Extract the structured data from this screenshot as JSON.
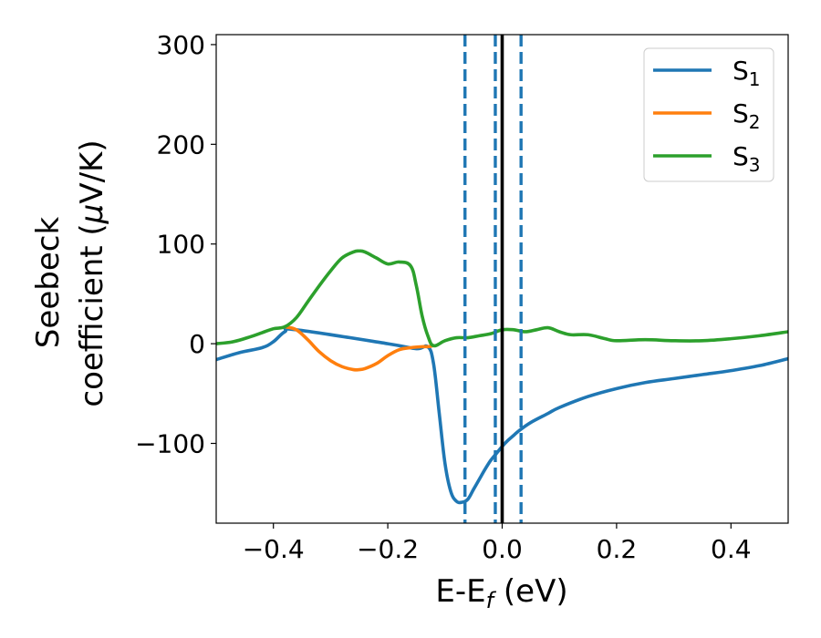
{
  "chart_data": {
    "type": "line",
    "xlabel_main": "E-E",
    "xlabel_sub": "f",
    "xlabel_unit": " (eV)",
    "ylabel_line1": "Seebeck",
    "ylabel_line2_pre": "coefficient  (",
    "ylabel_line2_mu": "μ",
    "ylabel_line2_post": "V/K)",
    "xlim": [
      -0.5,
      0.5
    ],
    "ylim": [
      -180,
      310
    ],
    "x_ticks": [
      {
        "value": -0.4,
        "label": "−0.4"
      },
      {
        "value": -0.2,
        "label": "−0.2"
      },
      {
        "value": 0.0,
        "label": "0.0"
      },
      {
        "value": 0.2,
        "label": "0.2"
      },
      {
        "value": 0.4,
        "label": "0.4"
      }
    ],
    "y_ticks": [
      {
        "value": -100,
        "label": "−100"
      },
      {
        "value": 0,
        "label": "0"
      },
      {
        "value": 100,
        "label": "100"
      },
      {
        "value": 200,
        "label": "200"
      },
      {
        "value": 300,
        "label": "300"
      }
    ],
    "legend_position": "top-right",
    "series": [
      {
        "name": "S",
        "subscript": "1",
        "color": "#1f77b4",
        "x": [
          -0.5,
          -0.46,
          -0.42,
          -0.4,
          -0.38,
          -0.36,
          -0.2,
          -0.15,
          -0.13,
          -0.12,
          -0.11,
          -0.1,
          -0.09,
          -0.08,
          -0.07,
          -0.06,
          -0.05,
          -0.04,
          -0.03,
          -0.02,
          -0.01,
          0.0,
          0.01,
          0.02,
          0.03,
          0.05,
          0.08,
          0.1,
          0.15,
          0.2,
          0.25,
          0.3,
          0.35,
          0.4,
          0.45,
          0.5
        ],
        "y": [
          -16,
          -9,
          -4,
          2,
          12,
          14,
          0,
          -5,
          -3,
          -20,
          -70,
          -120,
          -148,
          -158,
          -159,
          -156,
          -146,
          -136,
          -126,
          -117,
          -110,
          -103,
          -97,
          -92,
          -87,
          -79,
          -70,
          -64,
          -53,
          -45,
          -39,
          -35,
          -31,
          -27,
          -22,
          -15
        ]
      },
      {
        "name": "S",
        "subscript": "2",
        "color": "#ff7f0e",
        "x": [
          -0.38,
          -0.36,
          -0.34,
          -0.32,
          -0.3,
          -0.28,
          -0.26,
          -0.25,
          -0.24,
          -0.22,
          -0.2,
          -0.18,
          -0.16,
          -0.14,
          -0.13,
          -0.12
        ],
        "y": [
          17,
          14,
          4,
          -8,
          -17,
          -23,
          -26,
          -26,
          -25,
          -20,
          -12,
          -6,
          -4,
          -3,
          -3,
          -2
        ]
      },
      {
        "name": "S",
        "subscript": "3",
        "color": "#2ca02c",
        "x": [
          -0.5,
          -0.47,
          -0.44,
          -0.42,
          -0.4,
          -0.38,
          -0.36,
          -0.34,
          -0.32,
          -0.3,
          -0.28,
          -0.26,
          -0.25,
          -0.24,
          -0.22,
          -0.2,
          -0.18,
          -0.16,
          -0.15,
          -0.14,
          -0.13,
          -0.12,
          -0.1,
          -0.08,
          -0.06,
          -0.04,
          -0.02,
          0.0,
          0.02,
          0.04,
          0.06,
          0.08,
          0.1,
          0.12,
          0.15,
          0.18,
          0.2,
          0.25,
          0.3,
          0.35,
          0.4,
          0.45,
          0.5
        ],
        "y": [
          0,
          2,
          7,
          11,
          15,
          17,
          26,
          42,
          58,
          73,
          86,
          92,
          93,
          92,
          86,
          80,
          82,
          78,
          58,
          28,
          8,
          -2,
          3,
          6,
          6,
          8,
          10,
          14,
          14,
          12,
          14,
          16,
          12,
          9,
          9,
          5,
          3,
          4,
          3,
          3,
          5,
          8,
          12
        ]
      }
    ],
    "vlines": [
      {
        "x": -0.065,
        "style": "dashed",
        "color": "#1f77b4"
      },
      {
        "x": -0.012,
        "style": "dashed",
        "color": "#1f77b4"
      },
      {
        "x": 0.0,
        "style": "solid",
        "color": "#000000"
      },
      {
        "x": 0.033,
        "style": "dashed",
        "color": "#1f77b4"
      }
    ]
  }
}
